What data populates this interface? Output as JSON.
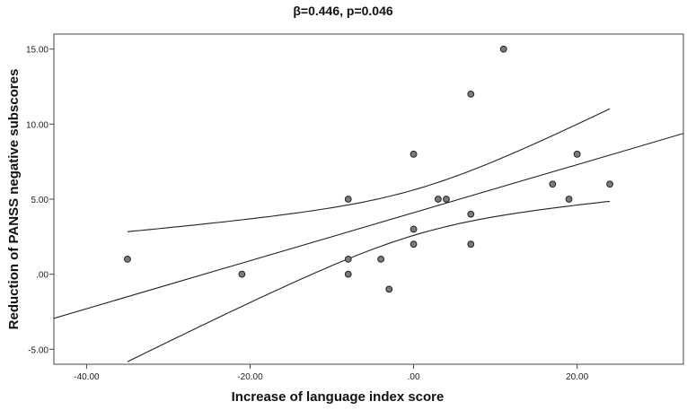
{
  "chart_data": {
    "type": "scatter",
    "title": "β=0.446, p=0.046",
    "xlabel": "Increase of language index score",
    "ylabel": "Reduction of PANSS negative subscores",
    "xlim": [
      -44,
      33
    ],
    "ylim": [
      -6,
      16
    ],
    "x_ticks": [
      {
        "value": -40,
        "label": "-40.00"
      },
      {
        "value": -20,
        "label": "-20.00"
      },
      {
        "value": 0,
        "label": ".00"
      },
      {
        "value": 20,
        "label": "20.00"
      }
    ],
    "y_ticks": [
      {
        "value": -5,
        "label": "-5.00"
      },
      {
        "value": 0,
        "label": ".00"
      },
      {
        "value": 5,
        "label": "5.00"
      },
      {
        "value": 10,
        "label": "10.00"
      },
      {
        "value": 15,
        "label": "15.00"
      }
    ],
    "points": [
      {
        "x": -35,
        "y": 1
      },
      {
        "x": -21,
        "y": 0
      },
      {
        "x": -8,
        "y": 5
      },
      {
        "x": -8,
        "y": 1
      },
      {
        "x": -8,
        "y": 0
      },
      {
        "x": -4,
        "y": 1
      },
      {
        "x": -3,
        "y": -1
      },
      {
        "x": 0,
        "y": 8
      },
      {
        "x": 0,
        "y": 3
      },
      {
        "x": 0,
        "y": 2
      },
      {
        "x": 3,
        "y": 5
      },
      {
        "x": 4,
        "y": 5
      },
      {
        "x": 7,
        "y": 12
      },
      {
        "x": 7,
        "y": 4
      },
      {
        "x": 7,
        "y": 2
      },
      {
        "x": 11,
        "y": 15
      },
      {
        "x": 17,
        "y": 6
      },
      {
        "x": 19,
        "y": 5
      },
      {
        "x": 20,
        "y": 8
      },
      {
        "x": 24,
        "y": 6
      }
    ],
    "fit_line": {
      "slope": 0.16,
      "intercept": 4.1
    },
    "confidence_band": {
      "x_range": [
        -35,
        24
      ],
      "n": 20,
      "x_mean": 0.5,
      "sxx": 3500,
      "se": 3.22,
      "t": 2.1
    }
  }
}
